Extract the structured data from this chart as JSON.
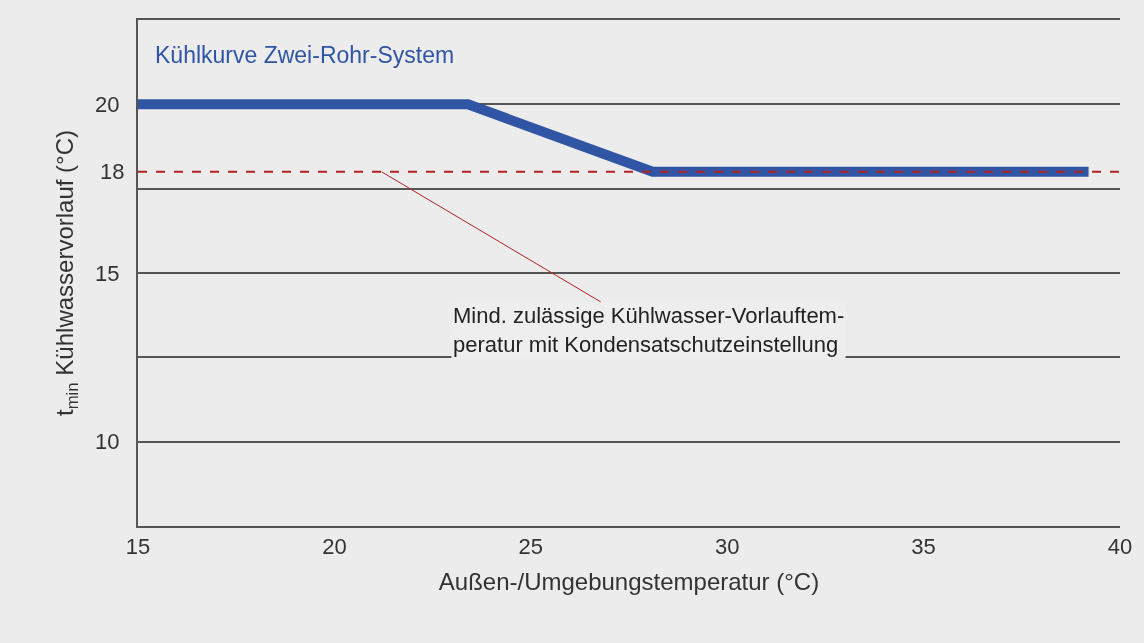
{
  "chart_data": {
    "type": "line",
    "xlabel": "Außen-/Umgebungstemperatur (°C)",
    "ylabel": "t$_{min}$ Kühlwasservorlauf (°C)",
    "x": [
      15,
      23.4,
      28.1,
      39.2
    ],
    "series": [
      {
        "name": "Kühlkurve Zwei-Rohr-System",
        "color": "#2f55a4",
        "values": [
          20,
          20,
          18,
          18
        ]
      }
    ],
    "xlim": [
      15,
      40
    ],
    "xticks": [
      15,
      20,
      25,
      30,
      35,
      40
    ],
    "ylim": [
      7.5,
      22.5
    ],
    "yticks": [
      10,
      {
        "value": 12.5,
        "label": null
      },
      15,
      {
        "value": 17.5,
        "label": null
      },
      20
    ],
    "ref_lines": [
      {
        "axis": "y",
        "value": 18,
        "label": "18",
        "color": "#b22222",
        "line_style": "dashed"
      }
    ],
    "annotations": [
      {
        "text": "Mind. zulässige Kühlwasser-Vorlauftem-\nperatur mit Kondensatschutzeinstellung",
        "x": 21.2,
        "y": 18
      }
    ],
    "grid": "y",
    "legend": false,
    "marker": "none",
    "line_style": "solid"
  }
}
